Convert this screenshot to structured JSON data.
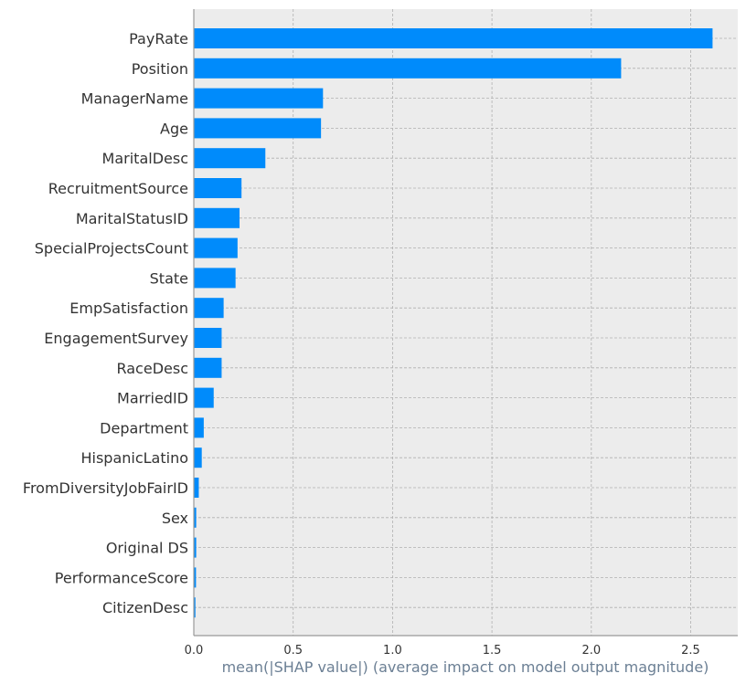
{
  "chart_data": {
    "type": "bar",
    "orientation": "horizontal",
    "title": "",
    "xlabel": "mean(|SHAP value|) (average impact on model output magnitude)",
    "ylabel": "",
    "xlim": [
      0,
      2.75
    ],
    "x_ticks": [
      0.0,
      0.5,
      1.0,
      1.5,
      2.0,
      2.5
    ],
    "x_tick_labels": [
      "0.0",
      "0.5",
      "1.0",
      "1.5",
      "2.0",
      "2.5"
    ],
    "grid": true,
    "legend": "none",
    "categories": [
      "PayRate",
      "Position",
      "ManagerName",
      "Age",
      "MaritalDesc",
      "RecruitmentSource",
      "MaritalStatusID",
      "SpecialProjectsCount",
      "State",
      "EmpSatisfaction",
      "EngagementSurvey",
      "RaceDesc",
      "MarriedID",
      "Department",
      "HispanicLatino",
      "FromDiversityJobFairID",
      "Sex",
      "Original DS",
      "PerformanceScore",
      "CitizenDesc"
    ],
    "values": [
      2.61,
      2.15,
      0.65,
      0.64,
      0.36,
      0.24,
      0.23,
      0.22,
      0.21,
      0.15,
      0.14,
      0.14,
      0.1,
      0.05,
      0.04,
      0.025,
      0.012,
      0.012,
      0.011,
      0.008
    ],
    "colors": {
      "bar": "#008bfb",
      "plot_background": "#ececec",
      "grid": "#b0b0b0",
      "axis": "#999999",
      "tick_text": "#333333",
      "xlabel_text": "#6b7f94"
    }
  }
}
